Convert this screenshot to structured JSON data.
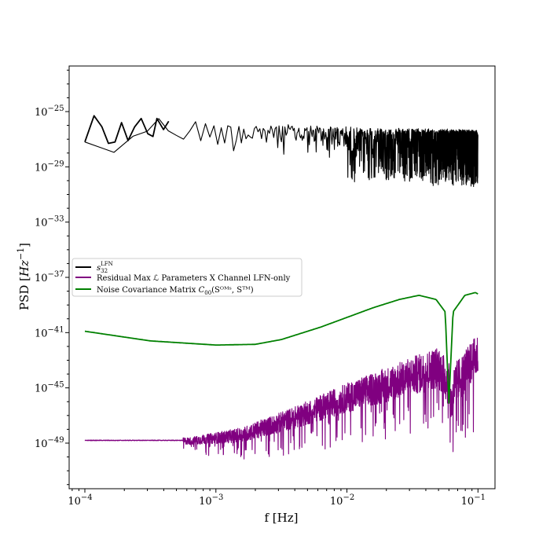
{
  "chart_data": {
    "type": "line",
    "xlabel": "f [Hz]",
    "ylabel": "PSD [Hz⁻¹]",
    "xscale": "log",
    "yscale": "log",
    "xlim_exp": [
      -4.12,
      -3.85
    ],
    "ylim_exp": [
      -52.3,
      -21.7
    ],
    "x_ticks": [
      {
        "base": "10",
        "exp": "−4"
      },
      {
        "base": "10",
        "exp": "−3"
      },
      {
        "base": "10",
        "exp": "−2"
      },
      {
        "base": "10",
        "exp": "−1"
      }
    ],
    "y_ticks": [
      {
        "base": "10",
        "exp": "−25"
      },
      {
        "base": "10",
        "exp": "−29"
      },
      {
        "base": "10",
        "exp": "−33"
      },
      {
        "base": "10",
        "exp": "−37"
      },
      {
        "base": "10",
        "exp": "−41"
      },
      {
        "base": "10",
        "exp": "−45"
      },
      {
        "base": "10",
        "exp": "−49"
      }
    ],
    "legend_position": "center-left",
    "series": [
      {
        "name_main": "s",
        "name_sub": "32",
        "name_sup": "LFN",
        "color": "#000000",
        "description_x_range": "1e-4 to 1e-1 Hz",
        "log10_psd_envelope": [
          [
            -4.0,
            -27.2
          ],
          [
            -3.93,
            -25.3
          ],
          [
            -3.8,
            -27.3
          ],
          [
            -3.5,
            -25.6
          ],
          [
            -3.0,
            -25.9
          ],
          [
            -2.0,
            -26.3
          ],
          [
            -1.0,
            -26.5
          ]
        ],
        "noise_depth_log10": [
          0.6,
          3.5
        ]
      },
      {
        "name": "Residual Max ℒ Parameters X Channel LFN-only",
        "color": "#800080",
        "log10_psd_envelope": [
          [
            -4.0,
            -48.8
          ],
          [
            -3.2,
            -48.8
          ],
          [
            -2.8,
            -48.3
          ],
          [
            -2.4,
            -47.0
          ],
          [
            -2.0,
            -45.5
          ],
          [
            -1.6,
            -44.2
          ],
          [
            -1.3,
            -43.2
          ],
          [
            -1.22,
            -44.5
          ],
          [
            -1.2,
            -46.0
          ],
          [
            -1.18,
            -44.5
          ],
          [
            -1.0,
            -42.3
          ]
        ],
        "noise_depth_log10": [
          0.0,
          2.5
        ]
      },
      {
        "name_prefix": "Noise Covariance Matrix ",
        "name_main": "C",
        "name_sub": "00",
        "name_args": "(Sᴼᴹˢ, Sᵀᴹ)",
        "color": "#008000",
        "log10_psd_points": [
          [
            -4.0,
            -40.9
          ],
          [
            -3.5,
            -41.6
          ],
          [
            -3.0,
            -41.9
          ],
          [
            -2.7,
            -41.85
          ],
          [
            -2.5,
            -41.5
          ],
          [
            -2.2,
            -40.6
          ],
          [
            -2.0,
            -39.9
          ],
          [
            -1.8,
            -39.2
          ],
          [
            -1.6,
            -38.6
          ],
          [
            -1.45,
            -38.3
          ],
          [
            -1.32,
            -38.6
          ],
          [
            -1.25,
            -39.5
          ],
          [
            -1.222,
            -46.1
          ],
          [
            -1.19,
            -39.5
          ],
          [
            -1.1,
            -38.3
          ],
          [
            -1.02,
            -38.1
          ],
          [
            -1.0,
            -38.2
          ]
        ]
      }
    ]
  }
}
